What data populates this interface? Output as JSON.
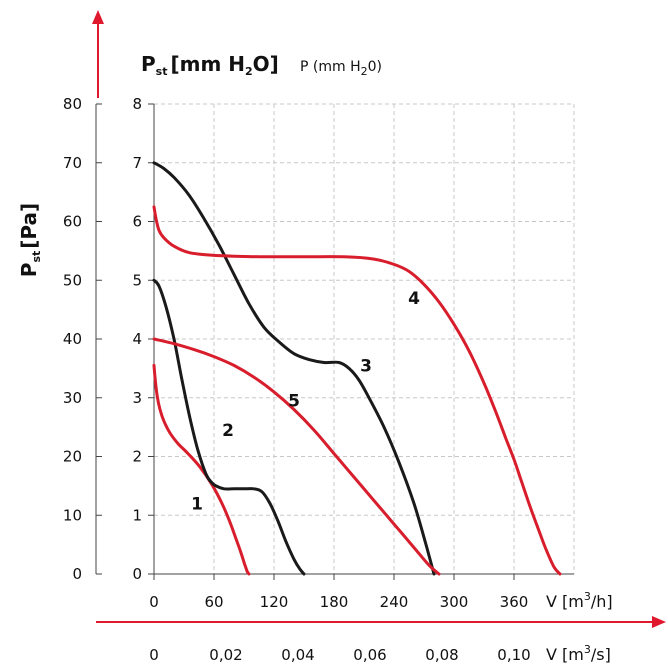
{
  "chart_data": {
    "type": "line",
    "title": "",
    "left_axis": {
      "label": "P",
      "label_sub": "st",
      "label_unit": "[Pa]",
      "ticks": [
        0,
        10,
        20,
        30,
        40,
        50,
        60,
        70,
        80
      ],
      "ylim": [
        0,
        80
      ]
    },
    "right_axis": {
      "label_bold": "P",
      "label_bold_sub": "st",
      "label_bold_unit_open": "[mm H",
      "label_bold_unit_sub": "2",
      "label_bold_unit_close": "O]",
      "label_small": "P (mm H",
      "label_small_sub": "2",
      "label_small_close": "0)",
      "ticks": [
        0,
        1,
        2,
        3,
        4,
        5,
        6,
        7,
        8
      ],
      "ylim": [
        0,
        8
      ]
    },
    "x_axis_m3h": {
      "label_prefix": "V [m",
      "label_sup": "3",
      "label_suffix": "/h]",
      "ticks": [
        0,
        60,
        120,
        180,
        240,
        300,
        360
      ],
      "xlim": [
        0,
        420
      ]
    },
    "x_axis_m3s": {
      "label_prefix": "V [m",
      "label_sup": "3",
      "label_suffix": "/s]",
      "ticks": [
        "0",
        "0,02",
        "0,04",
        "0,06",
        "0,08",
        "0,10"
      ],
      "tick_values_m3h": [
        0,
        72,
        144,
        216,
        288,
        360
      ]
    },
    "grid": true,
    "colors": {
      "red": "#d81e2c",
      "black": "#1a1a1a",
      "arrow": "#e0182d"
    },
    "series": [
      {
        "name": "1",
        "color": "red",
        "label_at": [
          43,
          1.2
        ],
        "x": [
          0,
          1,
          3,
          6,
          10,
          16,
          24,
          34,
          46,
          58,
          68,
          76,
          82,
          87,
          90,
          92,
          93,
          94,
          95
        ],
        "y": [
          3.55,
          3.35,
          3.05,
          2.8,
          2.6,
          2.4,
          2.22,
          2.05,
          1.82,
          1.52,
          1.2,
          0.88,
          0.6,
          0.36,
          0.2,
          0.1,
          0.05,
          0.02,
          0
        ]
      },
      {
        "name": "2",
        "color": "black",
        "label_at": [
          74,
          2.45
        ],
        "x": [
          0,
          5,
          12,
          20,
          28,
          36,
          44,
          52,
          58,
          62,
          70,
          80,
          90,
          100,
          108,
          116,
          124,
          132,
          140,
          146,
          150
        ],
        "y": [
          5.0,
          4.9,
          4.55,
          4.0,
          3.3,
          2.65,
          2.1,
          1.7,
          1.55,
          1.5,
          1.45,
          1.45,
          1.45,
          1.45,
          1.4,
          1.2,
          0.9,
          0.55,
          0.25,
          0.08,
          0
        ]
      },
      {
        "name": "3",
        "color": "black",
        "label_at": [
          212,
          3.55
        ],
        "x": [
          0,
          10,
          20,
          35,
          50,
          65,
          80,
          95,
          110,
          125,
          140,
          155,
          170,
          185,
          195,
          205,
          215,
          230,
          245,
          260,
          272,
          280
        ],
        "y": [
          7.0,
          6.9,
          6.75,
          6.45,
          6.05,
          5.6,
          5.1,
          4.6,
          4.2,
          3.95,
          3.75,
          3.65,
          3.6,
          3.6,
          3.5,
          3.3,
          3.0,
          2.5,
          1.9,
          1.2,
          0.5,
          0
        ]
      },
      {
        "name": "4",
        "color": "red",
        "label_at": [
          260,
          4.7
        ],
        "x": [
          0,
          2,
          5,
          10,
          20,
          35,
          55,
          80,
          110,
          150,
          190,
          220,
          240,
          255,
          270,
          285,
          300,
          315,
          330,
          342,
          352,
          360,
          368,
          376,
          384,
          392,
          400,
          406
        ],
        "y": [
          6.25,
          6.05,
          5.85,
          5.72,
          5.58,
          5.47,
          5.43,
          5.41,
          5.4,
          5.4,
          5.4,
          5.36,
          5.27,
          5.15,
          4.93,
          4.63,
          4.25,
          3.8,
          3.25,
          2.75,
          2.3,
          1.95,
          1.55,
          1.15,
          0.78,
          0.42,
          0.12,
          0
        ]
      },
      {
        "name": "5",
        "color": "red",
        "label_at": [
          140,
          2.95
        ],
        "x": [
          0,
          20,
          40,
          60,
          80,
          100,
          120,
          140,
          160,
          180,
          200,
          220,
          240,
          260,
          275,
          285
        ],
        "y": [
          4.0,
          3.92,
          3.82,
          3.7,
          3.55,
          3.35,
          3.1,
          2.8,
          2.45,
          2.05,
          1.65,
          1.25,
          0.85,
          0.45,
          0.15,
          0
        ]
      }
    ]
  }
}
